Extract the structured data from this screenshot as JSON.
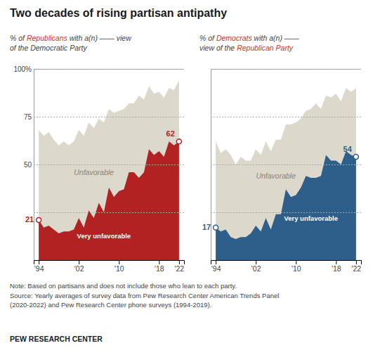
{
  "chart_data": [
    {
      "type": "area",
      "title": "Two decades of rising partisan antipathy",
      "subtitle": [
        "% of Republicans with a(n) —— view",
        "of the Democratic Party"
      ],
      "subtitle_highlight": [
        "Republicans"
      ],
      "subtitle_color": "#c0392b",
      "x": [
        1994,
        1995,
        1996,
        1997,
        1998,
        1999,
        2000,
        2001,
        2002,
        2003,
        2004,
        2005,
        2006,
        2007,
        2008,
        2009,
        2010,
        2011,
        2012,
        2013,
        2014,
        2015,
        2016,
        2017,
        2018,
        2019,
        2020,
        2021,
        2022
      ],
      "series": [
        {
          "name": "Unfavorable",
          "color": "#ddd8cc",
          "values": [
            68,
            65,
            67,
            63,
            60,
            62,
            60,
            62,
            68,
            65,
            72,
            69,
            74,
            72,
            79,
            77,
            78,
            79,
            82,
            82,
            86,
            84,
            91,
            87,
            88,
            85,
            90,
            89,
            94
          ]
        },
        {
          "name": "Very unfavorable",
          "color": "#b22222",
          "values": [
            21,
            17,
            18,
            16,
            14,
            15,
            15,
            16,
            22,
            17,
            26,
            22,
            30,
            25,
            38,
            33,
            36,
            37,
            46,
            46,
            43,
            46,
            58,
            55,
            57,
            54,
            62,
            60,
            62
          ]
        }
      ],
      "xlim": [
        1993,
        2023
      ],
      "xticks": [
        {
          "value": 1994,
          "label": "'94"
        },
        {
          "value": 2002,
          "label": "'02"
        },
        {
          "value": 2010,
          "label": "'10"
        },
        {
          "value": 2018,
          "label": "'18"
        },
        {
          "value": 2022,
          "label": "'22"
        }
      ],
      "ylim": [
        0,
        100
      ],
      "yticks": [
        {
          "value": 25,
          "label": null
        },
        50,
        75,
        {
          "value": 100,
          "label": "100%"
        }
      ],
      "grid": true,
      "annotations": [
        {
          "text": "21",
          "x": 1994,
          "y": 21
        },
        {
          "text": "62",
          "x": 2022,
          "y": 62
        }
      ],
      "note": "Note: Based on partisans and does not include those who lean to each party.\nSource: Yearly averages of survey data from Pew Research Center American Trends Panel\n(2020-2022) and Pew Research Center phone surveys (1994-2019).",
      "source": "PEW RESEARCH CENTER"
    },
    {
      "type": "area",
      "subtitle": [
        "% of Democrats with a(n) ——",
        "view of the Republican Party"
      ],
      "subtitle_highlight": [
        "Democrats",
        "Republican Party"
      ],
      "subtitle_color": "#c0392b",
      "x": [
        1994,
        1995,
        1996,
        1997,
        1998,
        1999,
        2000,
        2001,
        2002,
        2003,
        2004,
        2005,
        2006,
        2007,
        2008,
        2009,
        2010,
        2011,
        2012,
        2013,
        2014,
        2015,
        2016,
        2017,
        2018,
        2019,
        2020,
        2021,
        2022
      ],
      "series": [
        {
          "name": "Unfavorable",
          "color": "#ddd8cc",
          "values": [
            62,
            56,
            58,
            55,
            50,
            54,
            52,
            52,
            58,
            55,
            62,
            57,
            63,
            63,
            71,
            71,
            72,
            74,
            78,
            79,
            82,
            79,
            86,
            85,
            87,
            83,
            90,
            88,
            90
          ]
        },
        {
          "name": "Very unfavorable",
          "color": "#2e5f8a",
          "values": [
            17,
            15,
            16,
            12,
            11,
            12,
            12,
            14,
            18,
            15,
            22,
            16,
            24,
            24,
            37,
            33,
            34,
            38,
            44,
            43,
            43,
            44,
            55,
            52,
            52,
            50,
            57,
            55,
            54
          ]
        }
      ],
      "xlim": [
        1993,
        2023
      ],
      "xticks": [
        {
          "value": 1994,
          "label": "'94"
        },
        {
          "value": 2002,
          "label": "'02"
        },
        {
          "value": 2010,
          "label": "'10"
        },
        {
          "value": 2018,
          "label": "'18"
        },
        {
          "value": 2022,
          "label": "'22"
        }
      ],
      "ylim": [
        0,
        100
      ],
      "yticks": [
        25,
        50,
        75,
        100
      ],
      "grid": true,
      "tick_labels": "x",
      "annotations": [
        {
          "text": "17",
          "x": 1994,
          "y": 17
        },
        {
          "text": "54",
          "x": 2022,
          "y": 54
        }
      ]
    }
  ]
}
